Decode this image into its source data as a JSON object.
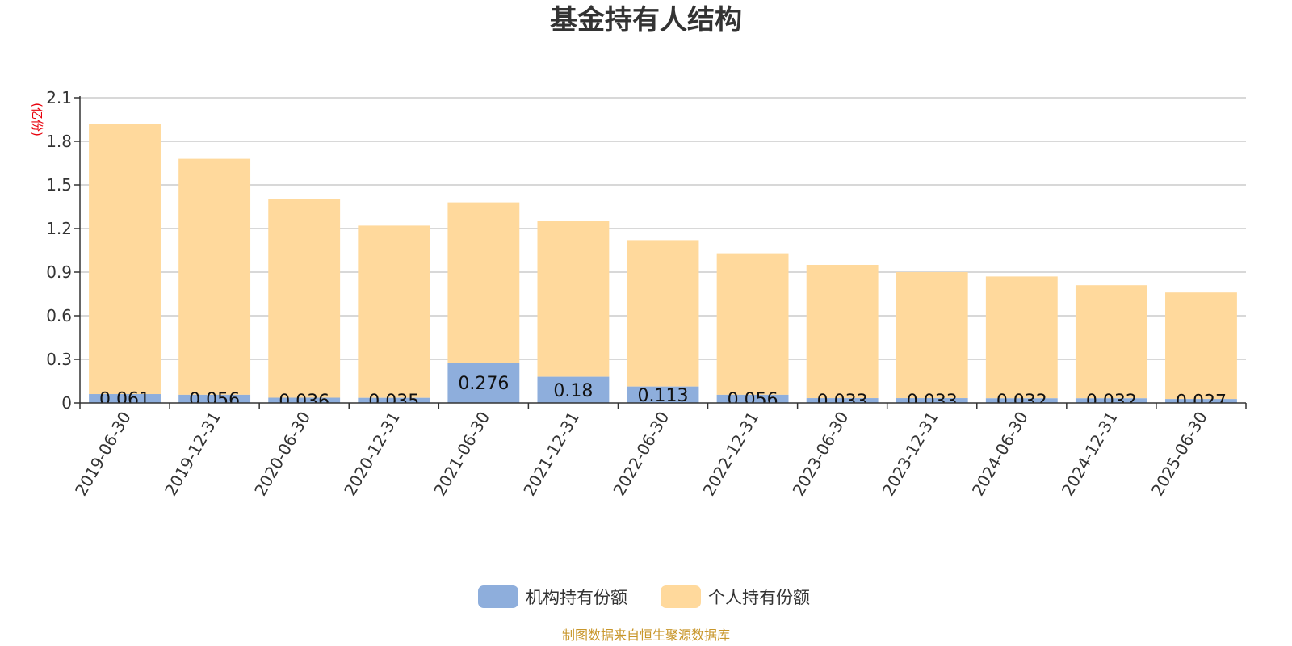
{
  "chart_data": {
    "type": "bar",
    "stacked": true,
    "title": "基金持有人结构",
    "y_unit": "(亿份)",
    "ylim": [
      0,
      2.1
    ],
    "yticks": [
      "0",
      "0.3",
      "0.6",
      "0.9",
      "1.2",
      "1.5",
      "1.8",
      "2.1"
    ],
    "grid": true,
    "legend_position": "bottom-center",
    "categories": [
      "2019-06-30",
      "2019-12-31",
      "2020-06-30",
      "2020-12-31",
      "2021-06-30",
      "2021-12-31",
      "2022-06-30",
      "2022-12-31",
      "2023-06-30",
      "2023-12-31",
      "2024-06-30",
      "2024-12-31",
      "2025-06-30"
    ],
    "series": [
      {
        "name": "机构持有份额",
        "color": "#8eaedc",
        "values": [
          0.061,
          0.056,
          0.036,
          0.035,
          0.276,
          0.18,
          0.113,
          0.056,
          0.033,
          0.033,
          0.032,
          0.032,
          0.027
        ],
        "labels": [
          "0.061",
          "0.056",
          "0.036",
          "0.035",
          "0.276",
          "0.18",
          "0.113",
          "0.056",
          "0.033",
          "0.033",
          "0.032",
          "0.032",
          "0.027"
        ]
      },
      {
        "name": "个人持有份额",
        "color": "#ffd99c",
        "values": [
          1.859,
          1.624,
          1.364,
          1.185,
          1.104,
          1.07,
          1.007,
          0.974,
          0.917,
          0.867,
          0.838,
          0.778,
          0.733
        ]
      }
    ]
  },
  "source": "制图数据来自恒生聚源数据库"
}
